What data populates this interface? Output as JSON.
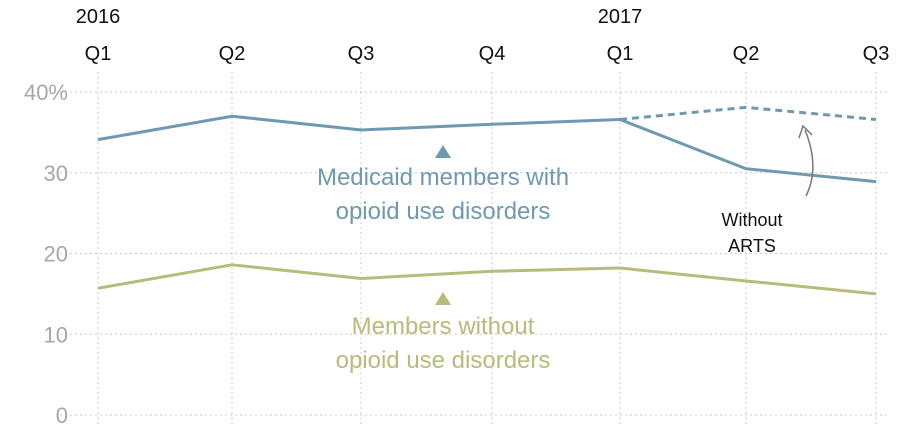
{
  "colors": {
    "medicaid": "#6f99b0",
    "members": "#b8bb7a",
    "grid": "#cccccc",
    "ytick": "#a7a7a7",
    "xtick": "#111111",
    "annotation": "#111111"
  },
  "chart_data": {
    "type": "line",
    "title": "",
    "xlabel": "",
    "ylabel": "",
    "x": [
      "2016 Q1",
      "Q2",
      "Q3",
      "Q4",
      "2017 Q1",
      "Q2",
      "Q3"
    ],
    "x_tick_lines": [
      [
        "2016",
        "Q1"
      ],
      [
        "Q2"
      ],
      [
        "Q3"
      ],
      [
        "Q4"
      ],
      [
        "2017",
        "Q1"
      ],
      [
        "Q2"
      ],
      [
        "Q3"
      ]
    ],
    "y_ticks": [
      "40%",
      "30",
      "20",
      "10",
      "0"
    ],
    "ylim": [
      0,
      40
    ],
    "grid": true,
    "series": [
      {
        "name": "Medicaid members with opioid use disorders",
        "label_lines": [
          "Medicaid members with",
          "opioid use disorders"
        ],
        "values": [
          34.1,
          37.0,
          35.3,
          36.0,
          36.6,
          30.5,
          28.9
        ],
        "style": "solid",
        "color": "medicaid"
      },
      {
        "name": "Without ARTS",
        "values": [
          null,
          null,
          null,
          null,
          36.6,
          38.1,
          36.6
        ],
        "style": "dashed",
        "color": "medicaid"
      },
      {
        "name": "Members without opioid use disorders",
        "label_lines": [
          "Members without",
          "opioid use disorders"
        ],
        "values": [
          15.7,
          18.6,
          16.9,
          17.8,
          18.2,
          16.6,
          15.0
        ],
        "style": "solid",
        "color": "members"
      }
    ],
    "annotations": [
      {
        "text_lines": [
          "Without",
          "ARTS"
        ]
      }
    ]
  }
}
